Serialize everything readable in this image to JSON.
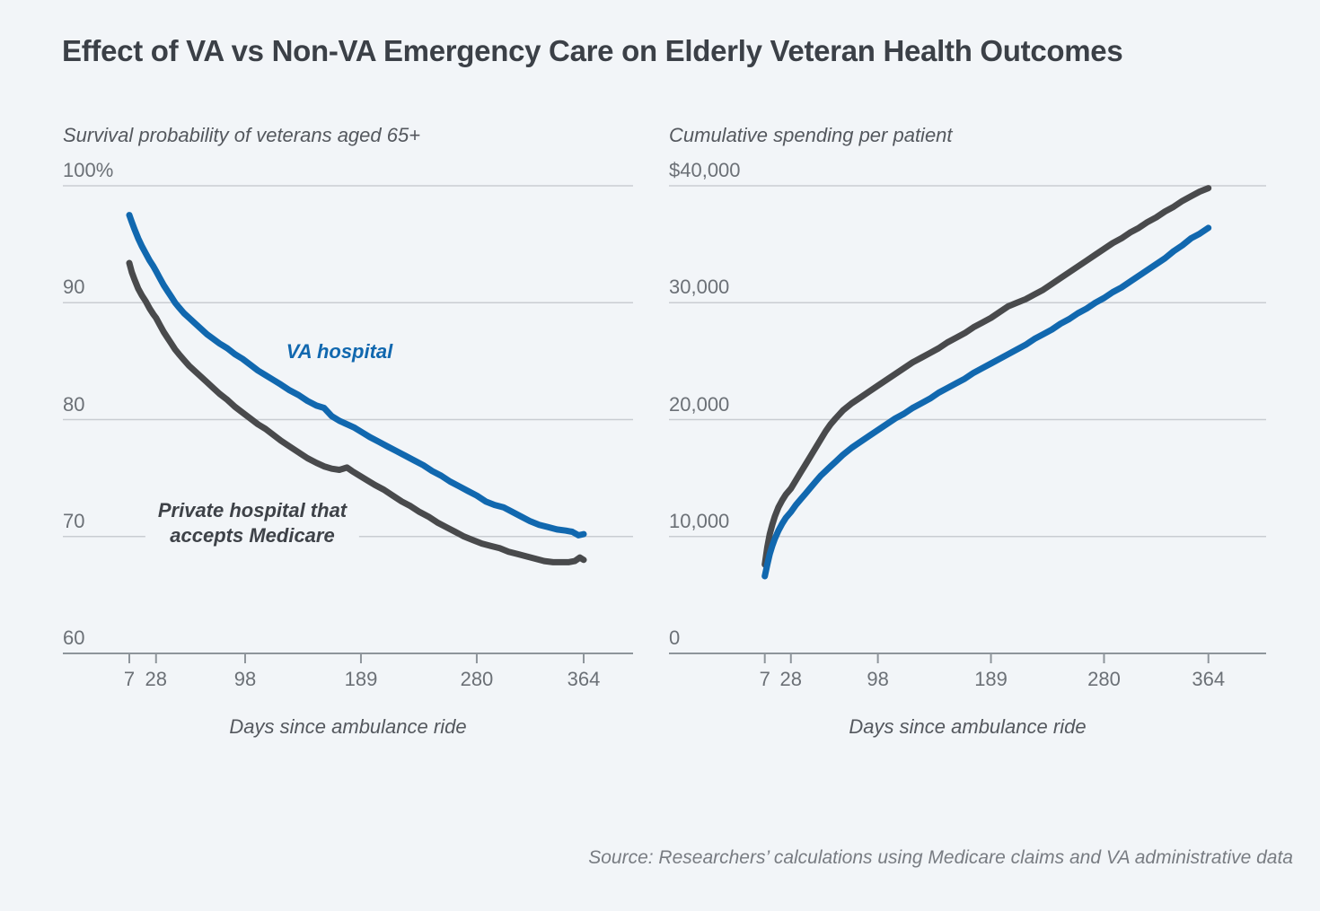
{
  "page": {
    "title": "Effect of VA vs Non-VA Emergency Care on Elderly Veteran Health Outcomes",
    "source_note": "Source: Researchers’ calculations using Medicare claims and VA administrative data",
    "background": "#f2f5f8"
  },
  "colors": {
    "va_blue": "#1168af",
    "private_gray": "#494a4c",
    "annotation_dark": "#3e4248",
    "title_text": "#3b4047",
    "subtitle_text": "#54585e",
    "tick_text": "#6b7076",
    "source_text": "#787c82",
    "gridline": "#c9cdd2",
    "axis_line": "#8e959b"
  },
  "x_axis": {
    "label": "Days since ambulance ride",
    "ticks": [
      7,
      28,
      98,
      189,
      280,
      364
    ]
  },
  "chart_data": [
    {
      "type": "line",
      "title": "Survival probability of veterans aged 65+",
      "xlabel": "Days since ambulance ride",
      "xlim": [
        7,
        364
      ],
      "ylim": [
        60,
        100
      ],
      "grid": "horizontal",
      "y_axis": {
        "values": [
          100,
          90,
          80,
          70,
          60
        ],
        "labels": [
          "100%",
          "90",
          "80",
          "70",
          "60"
        ],
        "unit": "percent surviving"
      },
      "series": [
        {
          "name": "Private hospital that accepts Medicare",
          "color": "private_gray",
          "points": [
            [
              7,
              93.4
            ],
            [
              9,
              92.6
            ],
            [
              11,
              92.0
            ],
            [
              14,
              91.2
            ],
            [
              17,
              90.6
            ],
            [
              20,
              90.1
            ],
            [
              23,
              89.5
            ],
            [
              26,
              89.0
            ],
            [
              28,
              88.7
            ],
            [
              31,
              88.1
            ],
            [
              34,
              87.5
            ],
            [
              37,
              87.0
            ],
            [
              40,
              86.5
            ],
            [
              43,
              86.0
            ],
            [
              46,
              85.6
            ],
            [
              50,
              85.1
            ],
            [
              54,
              84.6
            ],
            [
              58,
              84.2
            ],
            [
              63,
              83.7
            ],
            [
              68,
              83.2
            ],
            [
              73,
              82.7
            ],
            [
              78,
              82.2
            ],
            [
              84,
              81.7
            ],
            [
              90,
              81.1
            ],
            [
              96,
              80.6
            ],
            [
              102,
              80.1
            ],
            [
              108,
              79.6
            ],
            [
              114,
              79.2
            ],
            [
              120,
              78.7
            ],
            [
              126,
              78.2
            ],
            [
              133,
              77.7
            ],
            [
              140,
              77.2
            ],
            [
              147,
              76.7
            ],
            [
              154,
              76.3
            ],
            [
              160,
              76.0
            ],
            [
              166,
              75.8
            ],
            [
              172,
              75.7
            ],
            [
              178,
              75.9
            ],
            [
              182,
              75.6
            ],
            [
              188,
              75.2
            ],
            [
              194,
              74.8
            ],
            [
              200,
              74.4
            ],
            [
              207,
              74.0
            ],
            [
              214,
              73.5
            ],
            [
              221,
              73.0
            ],
            [
              228,
              72.6
            ],
            [
              235,
              72.1
            ],
            [
              242,
              71.7
            ],
            [
              249,
              71.2
            ],
            [
              256,
              70.8
            ],
            [
              263,
              70.4
            ],
            [
              270,
              70.0
            ],
            [
              277,
              69.7
            ],
            [
              284,
              69.4
            ],
            [
              291,
              69.2
            ],
            [
              298,
              69.0
            ],
            [
              305,
              68.7
            ],
            [
              312,
              68.5
            ],
            [
              319,
              68.3
            ],
            [
              326,
              68.1
            ],
            [
              333,
              67.9
            ],
            [
              340,
              67.8
            ],
            [
              347,
              67.8
            ],
            [
              352,
              67.8
            ],
            [
              357,
              67.9
            ],
            [
              361,
              68.2
            ],
            [
              364,
              68.0
            ]
          ]
        },
        {
          "name": "VA hospital",
          "color": "va_blue",
          "points": [
            [
              7,
              97.5
            ],
            [
              9,
              96.9
            ],
            [
              11,
              96.3
            ],
            [
              14,
              95.5
            ],
            [
              17,
              94.8
            ],
            [
              20,
              94.2
            ],
            [
              23,
              93.6
            ],
            [
              26,
              93.1
            ],
            [
              28,
              92.7
            ],
            [
              31,
              92.1
            ],
            [
              34,
              91.5
            ],
            [
              37,
              91.0
            ],
            [
              40,
              90.5
            ],
            [
              43,
              90.0
            ],
            [
              46,
              89.6
            ],
            [
              50,
              89.1
            ],
            [
              54,
              88.7
            ],
            [
              58,
              88.3
            ],
            [
              63,
              87.8
            ],
            [
              68,
              87.3
            ],
            [
              73,
              86.9
            ],
            [
              78,
              86.5
            ],
            [
              84,
              86.1
            ],
            [
              90,
              85.6
            ],
            [
              96,
              85.2
            ],
            [
              102,
              84.7
            ],
            [
              108,
              84.2
            ],
            [
              114,
              83.8
            ],
            [
              120,
              83.4
            ],
            [
              126,
              83.0
            ],
            [
              133,
              82.5
            ],
            [
              140,
              82.1
            ],
            [
              147,
              81.6
            ],
            [
              154,
              81.2
            ],
            [
              160,
              81.0
            ],
            [
              166,
              80.3
            ],
            [
              172,
              79.9
            ],
            [
              178,
              79.6
            ],
            [
              184,
              79.3
            ],
            [
              190,
              78.9
            ],
            [
              196,
              78.5
            ],
            [
              203,
              78.1
            ],
            [
              210,
              77.7
            ],
            [
              217,
              77.3
            ],
            [
              224,
              76.9
            ],
            [
              231,
              76.5
            ],
            [
              238,
              76.1
            ],
            [
              245,
              75.6
            ],
            [
              252,
              75.2
            ],
            [
              259,
              74.7
            ],
            [
              266,
              74.3
            ],
            [
              273,
              73.9
            ],
            [
              280,
              73.5
            ],
            [
              287,
              73.0
            ],
            [
              294,
              72.7
            ],
            [
              301,
              72.5
            ],
            [
              308,
              72.1
            ],
            [
              315,
              71.7
            ],
            [
              322,
              71.3
            ],
            [
              329,
              71.0
            ],
            [
              336,
              70.8
            ],
            [
              343,
              70.6
            ],
            [
              350,
              70.5
            ],
            [
              355,
              70.4
            ],
            [
              360,
              70.1
            ],
            [
              364,
              70.2
            ]
          ]
        }
      ],
      "annotations": [
        {
          "lines": [
            "VA hospital"
          ],
          "color": "va_blue"
        },
        {
          "lines": [
            "Private hospital that",
            "accepts Medicare"
          ],
          "color": "annotation_dark"
        }
      ]
    },
    {
      "type": "line",
      "title": "Cumulative spending per patient",
      "xlabel": "Days since ambulance ride",
      "xlim": [
        7,
        364
      ],
      "ylim": [
        0,
        40000
      ],
      "grid": "horizontal",
      "y_axis": {
        "values": [
          40000,
          30000,
          20000,
          10000,
          0
        ],
        "labels": [
          "$40,000",
          "30,000",
          "20,000",
          "10,000",
          "0"
        ],
        "unit": "USD"
      },
      "series": [
        {
          "name": "Private hospital that accepts Medicare",
          "color": "private_gray",
          "points": [
            [
              7,
              7600
            ],
            [
              9,
              9100
            ],
            [
              11,
              10200
            ],
            [
              13,
              11000
            ],
            [
              15,
              11700
            ],
            [
              18,
              12500
            ],
            [
              21,
              13100
            ],
            [
              24,
              13600
            ],
            [
              28,
              14100
            ],
            [
              32,
              14800
            ],
            [
              36,
              15500
            ],
            [
              40,
              16200
            ],
            [
              44,
              16900
            ],
            [
              48,
              17600
            ],
            [
              52,
              18300
            ],
            [
              56,
              19000
            ],
            [
              60,
              19600
            ],
            [
              64,
              20100
            ],
            [
              70,
              20800
            ],
            [
              77,
              21400
            ],
            [
              84,
              21900
            ],
            [
              91,
              22400
            ],
            [
              98,
              22900
            ],
            [
              105,
              23400
            ],
            [
              112,
              23900
            ],
            [
              119,
              24400
            ],
            [
              126,
              24900
            ],
            [
              133,
              25300
            ],
            [
              140,
              25700
            ],
            [
              147,
              26100
            ],
            [
              154,
              26600
            ],
            [
              161,
              27000
            ],
            [
              168,
              27400
            ],
            [
              175,
              27900
            ],
            [
              182,
              28300
            ],
            [
              189,
              28700
            ],
            [
              196,
              29200
            ],
            [
              203,
              29700
            ],
            [
              210,
              30000
            ],
            [
              217,
              30300
            ],
            [
              224,
              30700
            ],
            [
              231,
              31100
            ],
            [
              238,
              31600
            ],
            [
              245,
              32100
            ],
            [
              252,
              32600
            ],
            [
              259,
              33100
            ],
            [
              266,
              33600
            ],
            [
              273,
              34100
            ],
            [
              280,
              34600
            ],
            [
              287,
              35100
            ],
            [
              294,
              35500
            ],
            [
              301,
              36000
            ],
            [
              308,
              36400
            ],
            [
              315,
              36900
            ],
            [
              322,
              37300
            ],
            [
              329,
              37800
            ],
            [
              336,
              38200
            ],
            [
              343,
              38700
            ],
            [
              350,
              39100
            ],
            [
              357,
              39500
            ],
            [
              364,
              39800
            ]
          ]
        },
        {
          "name": "VA hospital",
          "color": "va_blue",
          "points": [
            [
              7,
              6600
            ],
            [
              9,
              7600
            ],
            [
              11,
              8500
            ],
            [
              13,
              9200
            ],
            [
              15,
              9800
            ],
            [
              18,
              10500
            ],
            [
              21,
              11100
            ],
            [
              24,
              11600
            ],
            [
              28,
              12100
            ],
            [
              32,
              12700
            ],
            [
              36,
              13200
            ],
            [
              40,
              13700
            ],
            [
              44,
              14200
            ],
            [
              48,
              14700
            ],
            [
              52,
              15200
            ],
            [
              56,
              15600
            ],
            [
              60,
              16000
            ],
            [
              64,
              16400
            ],
            [
              70,
              17000
            ],
            [
              77,
              17600
            ],
            [
              84,
              18100
            ],
            [
              91,
              18600
            ],
            [
              98,
              19100
            ],
            [
              105,
              19600
            ],
            [
              112,
              20100
            ],
            [
              119,
              20500
            ],
            [
              126,
              21000
            ],
            [
              133,
              21400
            ],
            [
              140,
              21800
            ],
            [
              147,
              22300
            ],
            [
              154,
              22700
            ],
            [
              161,
              23100
            ],
            [
              168,
              23500
            ],
            [
              175,
              24000
            ],
            [
              182,
              24400
            ],
            [
              189,
              24800
            ],
            [
              196,
              25200
            ],
            [
              203,
              25600
            ],
            [
              210,
              26000
            ],
            [
              217,
              26400
            ],
            [
              224,
              26900
            ],
            [
              231,
              27300
            ],
            [
              238,
              27700
            ],
            [
              245,
              28200
            ],
            [
              252,
              28600
            ],
            [
              259,
              29100
            ],
            [
              266,
              29500
            ],
            [
              273,
              30000
            ],
            [
              280,
              30400
            ],
            [
              287,
              30900
            ],
            [
              294,
              31300
            ],
            [
              301,
              31800
            ],
            [
              308,
              32300
            ],
            [
              315,
              32800
            ],
            [
              322,
              33300
            ],
            [
              329,
              33800
            ],
            [
              336,
              34400
            ],
            [
              343,
              34900
            ],
            [
              350,
              35500
            ],
            [
              357,
              35900
            ],
            [
              364,
              36400
            ]
          ]
        }
      ],
      "annotations": []
    }
  ]
}
